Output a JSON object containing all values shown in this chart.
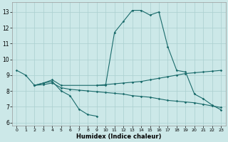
{
  "xlabel": "Humidex (Indice chaleur)",
  "xlim": [
    -0.5,
    23.5
  ],
  "ylim": [
    5.8,
    13.6
  ],
  "yticks": [
    6,
    7,
    8,
    9,
    10,
    11,
    12,
    13
  ],
  "xticks": [
    0,
    1,
    2,
    3,
    4,
    5,
    6,
    7,
    8,
    9,
    10,
    11,
    12,
    13,
    14,
    15,
    16,
    17,
    18,
    19,
    20,
    21,
    22,
    23
  ],
  "bg_color": "#cce8e8",
  "grid_color": "#aacfcf",
  "line_color": "#1a6b6b",
  "line1_x": [
    0,
    1,
    2,
    3,
    4,
    5,
    10,
    11,
    12,
    13,
    14,
    15,
    16,
    17,
    18,
    19,
    20,
    21,
    22,
    23
  ],
  "line1_y": [
    9.3,
    9.0,
    8.35,
    8.5,
    8.7,
    8.35,
    8.35,
    11.7,
    12.4,
    13.1,
    13.1,
    12.8,
    13.0,
    10.8,
    9.3,
    9.2,
    7.8,
    7.5,
    7.1,
    6.8
  ],
  "line2_x": [
    2,
    3,
    4,
    5,
    6,
    7,
    8,
    9,
    10,
    11,
    12,
    13,
    14,
    15,
    16,
    17,
    18,
    19,
    20,
    21,
    22,
    23
  ],
  "line2_y": [
    8.35,
    8.4,
    8.5,
    8.2,
    8.1,
    8.05,
    8.0,
    7.95,
    7.9,
    7.85,
    7.8,
    7.7,
    7.65,
    7.6,
    7.5,
    7.4,
    7.35,
    7.3,
    7.25,
    7.15,
    7.05,
    6.95
  ],
  "line3_x": [
    2,
    3,
    4,
    5,
    6,
    7,
    8,
    9
  ],
  "line3_y": [
    8.35,
    8.5,
    8.6,
    8.0,
    7.7,
    6.85,
    6.5,
    6.4
  ],
  "line4_x": [
    9,
    10,
    11,
    12,
    13,
    14,
    15,
    16,
    17,
    18,
    19,
    20,
    21,
    22,
    23
  ],
  "line4_y": [
    8.35,
    8.4,
    8.45,
    8.5,
    8.55,
    8.6,
    8.7,
    8.8,
    8.9,
    9.0,
    9.1,
    9.15,
    9.2,
    9.25,
    9.3
  ]
}
